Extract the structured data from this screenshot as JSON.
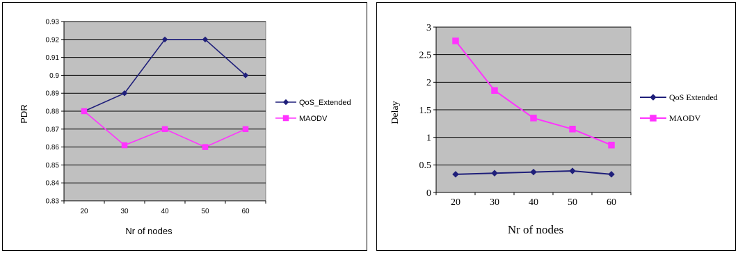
{
  "chart_data": [
    {
      "type": "line",
      "title": "",
      "xlabel": "Nr of nodes",
      "ylabel": "PDR",
      "categories": [
        "20",
        "30",
        "40",
        "50",
        "60"
      ],
      "ylim": [
        0.83,
        0.93
      ],
      "yticks": [
        "0.83",
        "0.84",
        "0.85",
        "0.86",
        "0.87",
        "0.88",
        "0.89",
        "0.9",
        "0.91",
        "0.92",
        "0.93"
      ],
      "grid": true,
      "legend_position": "right",
      "series": [
        {
          "name": "QoS_Extended",
          "color": "#1f1f7a",
          "marker": "diamond",
          "values": [
            0.88,
            0.89,
            0.92,
            0.92,
            0.9
          ]
        },
        {
          "name": "MAODV",
          "color": "#ff33ff",
          "marker": "square",
          "values": [
            0.88,
            0.861,
            0.87,
            0.86,
            0.87
          ]
        }
      ]
    },
    {
      "type": "line",
      "title": "",
      "xlabel": "Nr of  nodes",
      "ylabel": "Delay",
      "categories": [
        "20",
        "30",
        "40",
        "50",
        "60"
      ],
      "ylim": [
        0,
        3
      ],
      "yticks": [
        "0",
        "0.5",
        "1",
        "1.5",
        "2",
        "2.5",
        "3"
      ],
      "grid": true,
      "legend_position": "right",
      "series": [
        {
          "name": "QoS Extended",
          "color": "#1f1f7a",
          "marker": "diamond",
          "values": [
            0.33,
            0.35,
            0.37,
            0.39,
            0.33
          ]
        },
        {
          "name": "MAODV",
          "color": "#ff33ff",
          "marker": "square",
          "values": [
            2.75,
            1.85,
            1.35,
            1.15,
            0.86
          ]
        }
      ]
    }
  ]
}
